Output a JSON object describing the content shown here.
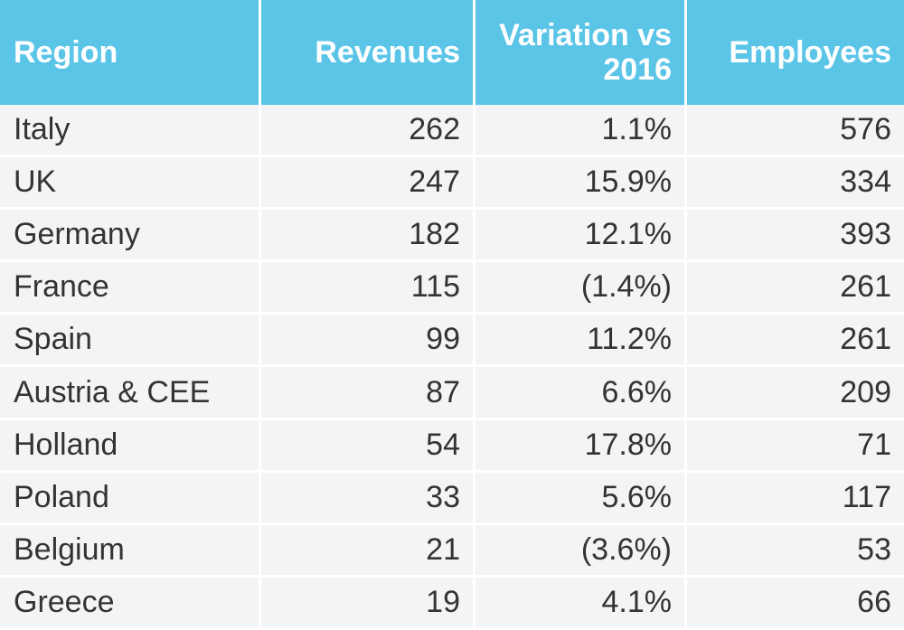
{
  "chart_data": {
    "type": "table",
    "columns": [
      "Region",
      "Revenues",
      "Variation vs\n2016",
      "Employees"
    ],
    "rows": [
      [
        "Italy",
        "262",
        "1.1%",
        "576"
      ],
      [
        "UK",
        "247",
        "15.9%",
        "334"
      ],
      [
        "Germany",
        "182",
        "12.1%",
        "393"
      ],
      [
        "France",
        "115",
        "(1.4%)",
        "261"
      ],
      [
        "Spain",
        "99",
        "11.2%",
        "261"
      ],
      [
        "Austria & CEE",
        "87",
        "6.6%",
        "209"
      ],
      [
        "Holland",
        "54",
        "17.8%",
        "71"
      ],
      [
        "Poland",
        "33",
        "5.6%",
        "117"
      ],
      [
        "Belgium",
        "21",
        "(3.6%)",
        "53"
      ],
      [
        "Greece",
        "19",
        "4.1%",
        "66"
      ]
    ]
  },
  "colors": {
    "header_bg": "#5bc5e8",
    "header_text": "#ffffff",
    "row_bg": "#f3f4f6",
    "text": "#333333"
  }
}
